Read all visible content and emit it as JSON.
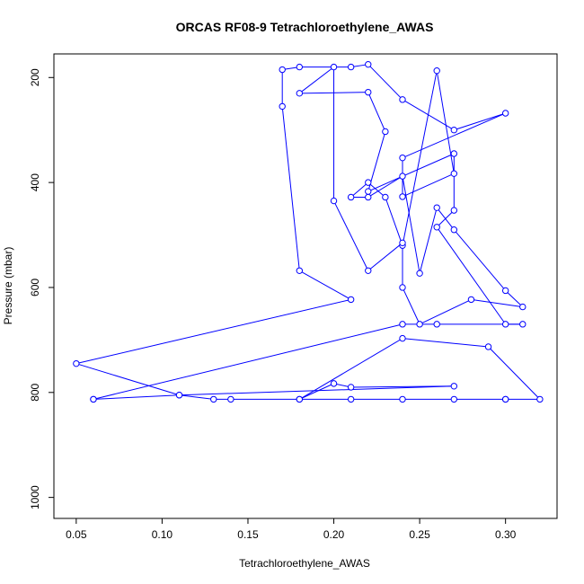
{
  "chart_data": {
    "type": "scatter",
    "title": "ORCAS RF08-9 Tetrachloroethylene_AWAS",
    "xlabel": "Tetrachloroethylene_AWAS",
    "ylabel": "Pressure (mbar)",
    "xlim": [
      0.037,
      0.33
    ],
    "ylim": [
      1040,
      155
    ],
    "y_reversed": true,
    "grid": false,
    "x_ticks": [
      0.05,
      0.1,
      0.15,
      0.2,
      0.25,
      0.3
    ],
    "x_tick_labels": [
      "0.05",
      "0.10",
      "0.15",
      "0.20",
      "0.25",
      "0.30"
    ],
    "y_ticks": [
      200,
      400,
      600,
      800,
      1000
    ],
    "y_tick_labels": [
      "200",
      "400",
      "600",
      "800",
      "1000"
    ],
    "color": "#0000ff",
    "series": [
      {
        "x": [
          0.06,
          0.11,
          0.13,
          0.14,
          0.18,
          0.21,
          0.24,
          0.27,
          0.3,
          0.3,
          0.32,
          0.29,
          0.24,
          0.18,
          0.2,
          0.21,
          0.27,
          0.11,
          0.05,
          0.21,
          0.18,
          0.17,
          0.17,
          0.18,
          0.21,
          0.22,
          0.24,
          0.27,
          0.3,
          0.24,
          0.24,
          0.27,
          0.26,
          0.24,
          0.23,
          0.22,
          0.21,
          0.22,
          0.24,
          0.25,
          0.26,
          0.27,
          0.3,
          0.31,
          0.28,
          0.25,
          0.24,
          0.24,
          0.22,
          0.2,
          0.2,
          0.18,
          0.22,
          0.23,
          0.22,
          0.27,
          0.27,
          0.26,
          0.3,
          0.31,
          0.26,
          0.24,
          0.06
        ],
        "y": [
          813,
          805,
          813,
          813,
          813,
          813,
          813,
          813,
          813,
          813,
          813,
          713,
          697,
          813,
          783,
          790,
          788,
          805,
          745,
          623,
          568,
          255,
          185,
          180,
          180,
          175,
          242,
          300,
          268,
          353,
          427,
          383,
          187,
          520,
          428,
          400,
          428,
          428,
          388,
          573,
          448,
          490,
          606,
          637,
          623,
          670,
          600,
          515,
          568,
          435,
          180,
          230,
          228,
          303,
          417,
          345,
          453,
          485,
          670,
          670,
          670,
          670,
          813
        ]
      }
    ]
  }
}
